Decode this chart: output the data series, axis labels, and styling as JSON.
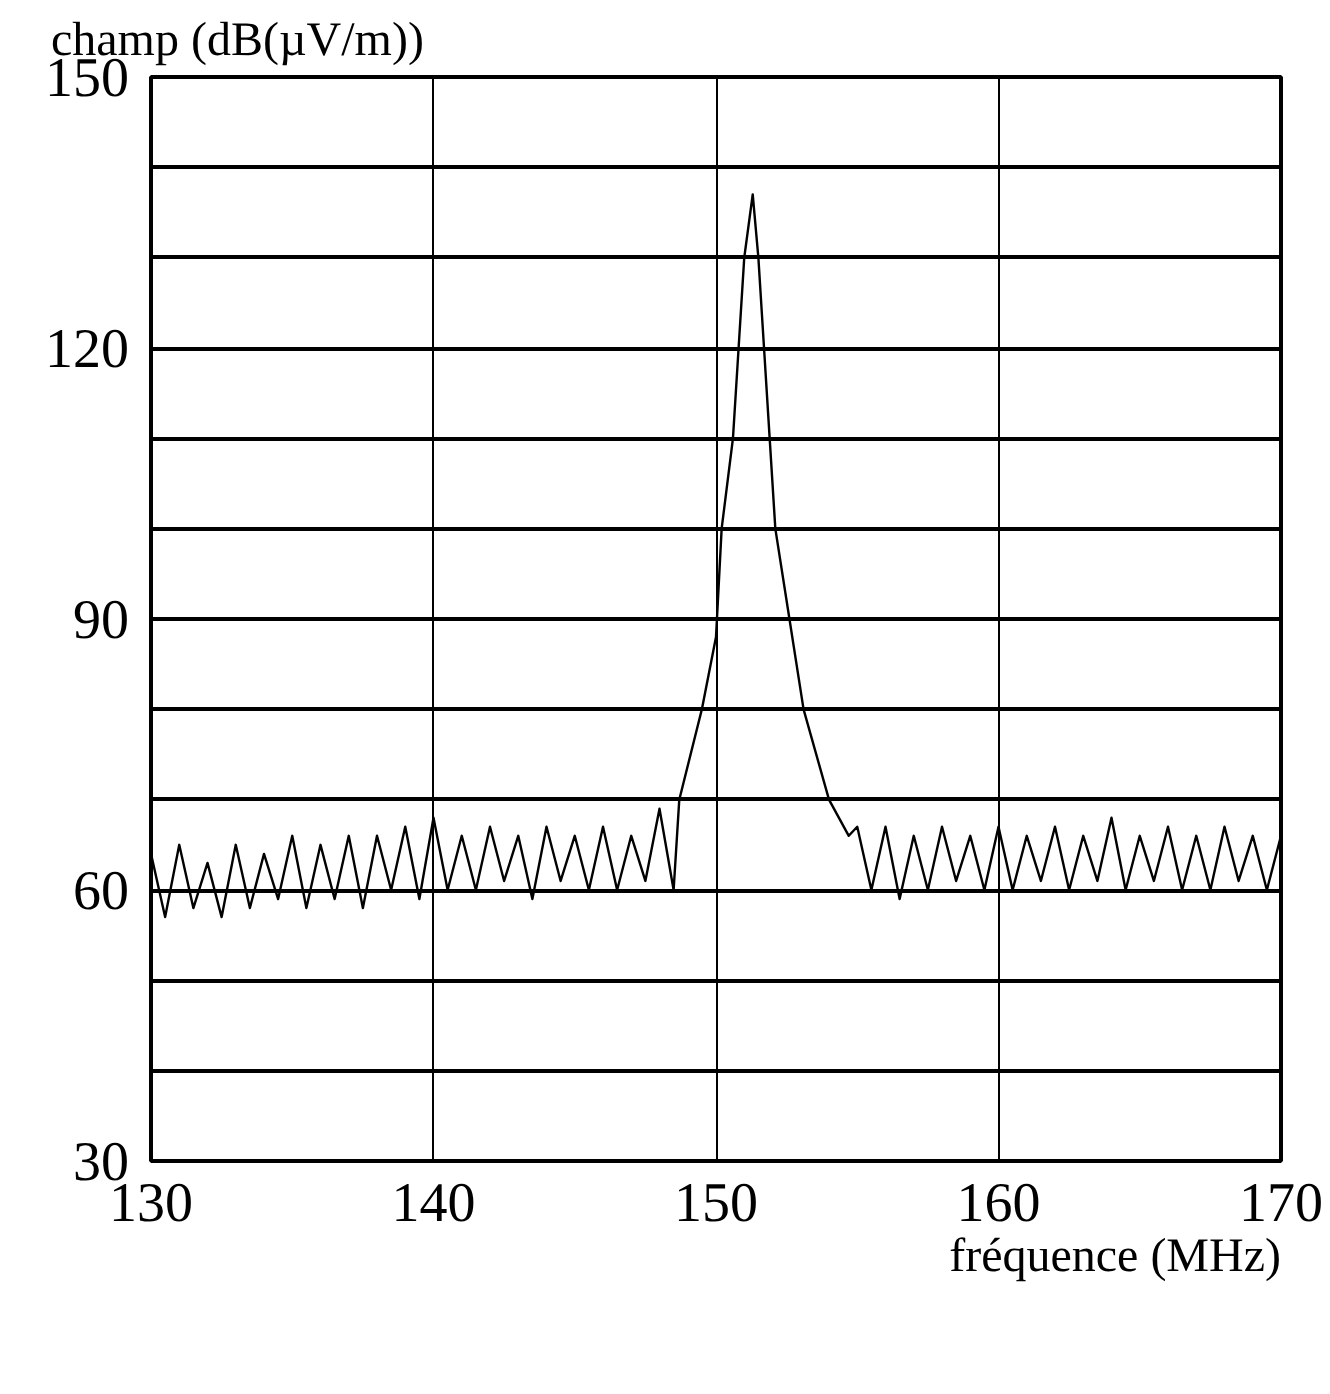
{
  "chart_data": {
    "type": "line",
    "ylabel": "champ (dB(µV/m))",
    "xlabel": "fréquence (MHz)",
    "xlim": [
      130,
      170
    ],
    "ylim": [
      30,
      150
    ],
    "xticks": [
      130,
      140,
      150,
      160,
      170
    ],
    "yticks": [
      {
        "value": 30,
        "label": "30"
      },
      {
        "value": 40,
        "label": null
      },
      {
        "value": 50,
        "label": null
      },
      {
        "value": 60,
        "label": "60"
      },
      {
        "value": 70,
        "label": null
      },
      {
        "value": 80,
        "label": null
      },
      {
        "value": 90,
        "label": "90"
      },
      {
        "value": 100,
        "label": null
      },
      {
        "value": 110,
        "label": null
      },
      {
        "value": 120,
        "label": "120"
      },
      {
        "value": 130,
        "label": null
      },
      {
        "value": 140,
        "label": null
      },
      {
        "value": 150,
        "label": "150"
      }
    ],
    "grid": true,
    "marker": "none",
    "line_style": "solid",
    "series": [
      {
        "color": "#000000",
        "x": [
          130,
          130.5,
          131,
          131.5,
          132,
          132.5,
          133,
          133.5,
          134,
          134.5,
          135,
          135.5,
          136,
          136.5,
          137,
          137.5,
          138,
          138.5,
          139,
          139.5,
          140,
          140.5,
          141,
          141.5,
          142,
          142.5,
          143,
          143.5,
          144,
          144.5,
          145,
          145.5,
          146,
          146.5,
          147,
          147.5,
          148,
          148.5,
          148.7,
          149.5,
          150.0,
          150.2,
          150.6,
          150.8,
          151.0,
          151.3,
          151.5,
          151.7,
          151.9,
          152.1,
          152.6,
          153.1,
          154.0,
          154.7,
          155,
          155.5,
          156,
          156.5,
          157,
          157.5,
          158,
          158.5,
          159,
          159.5,
          160,
          160.5,
          161,
          161.5,
          162,
          162.5,
          163,
          163.5,
          164,
          164.5,
          165,
          165.5,
          166,
          166.5,
          167,
          167.5,
          168,
          168.5,
          169,
          169.5,
          170
        ],
        "values": [
          64,
          57,
          65,
          58,
          63,
          57,
          65,
          58,
          64,
          59,
          66,
          58,
          65,
          59,
          66,
          58,
          66,
          60,
          67,
          59,
          68,
          60,
          66,
          60,
          67,
          61,
          66,
          59,
          67,
          61,
          66,
          60,
          67,
          60,
          66,
          61,
          69,
          60,
          70,
          80,
          88,
          100,
          110,
          120,
          130,
          137,
          130,
          120,
          110,
          100,
          90,
          80,
          70,
          66,
          67,
          60,
          67,
          59,
          66,
          60,
          67,
          61,
          66,
          60,
          67,
          60,
          66,
          61,
          67,
          60,
          66,
          61,
          68,
          60,
          66,
          61,
          67,
          60,
          66,
          60,
          67,
          61,
          66,
          60,
          66
        ]
      }
    ]
  }
}
